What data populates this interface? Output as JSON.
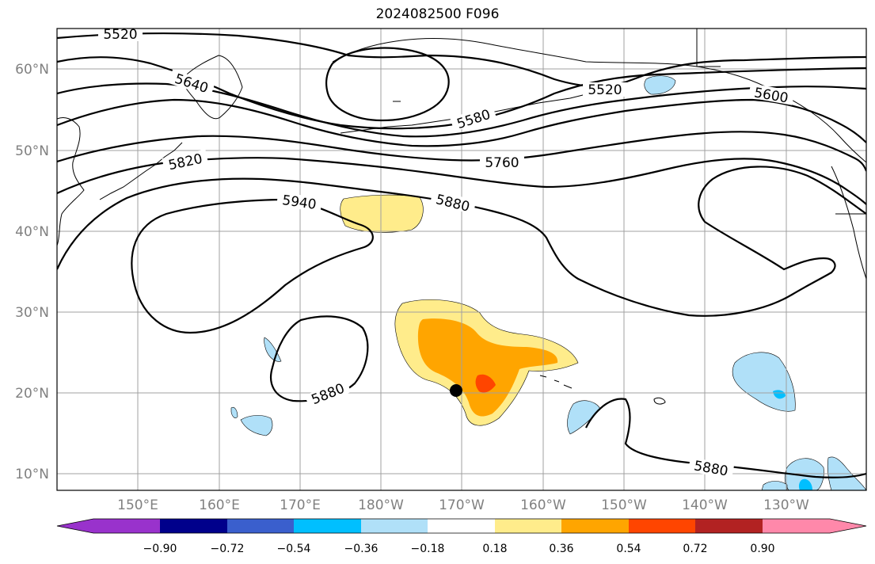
{
  "title": "2024082500 F096",
  "map": {
    "lat_labels": [
      "60°N",
      "50°N",
      "40°N",
      "30°N",
      "20°N",
      "10°N"
    ],
    "lon_labels": [
      "150°E",
      "160°E",
      "170°E",
      "180°W",
      "170°W",
      "160°W",
      "150°W",
      "140°W",
      "130°W"
    ],
    "contour_labels": [
      "5520",
      "5640",
      "5520",
      "5580",
      "5600",
      "5760",
      "5820",
      "5940",
      "5880",
      "5880",
      "5880"
    ],
    "storm_marker": "filled black circle"
  },
  "colorbar": {
    "ticks": [
      "−0.90",
      "−0.72",
      "−0.54",
      "−0.36",
      "−0.18",
      "0.18",
      "0.36",
      "0.54",
      "0.72",
      "0.90"
    ],
    "colors": [
      "#9932cc",
      "#00008b",
      "#3a5fcd",
      "#00bfff",
      "#b0e0f8",
      "#ffffff",
      "#ffec8b",
      "#ffa500",
      "#ff4500",
      "#b22222",
      "#ff88aa"
    ]
  },
  "colors": {
    "contour": "#000000",
    "grid": "#a0a0a0",
    "coast": "#000000"
  }
}
